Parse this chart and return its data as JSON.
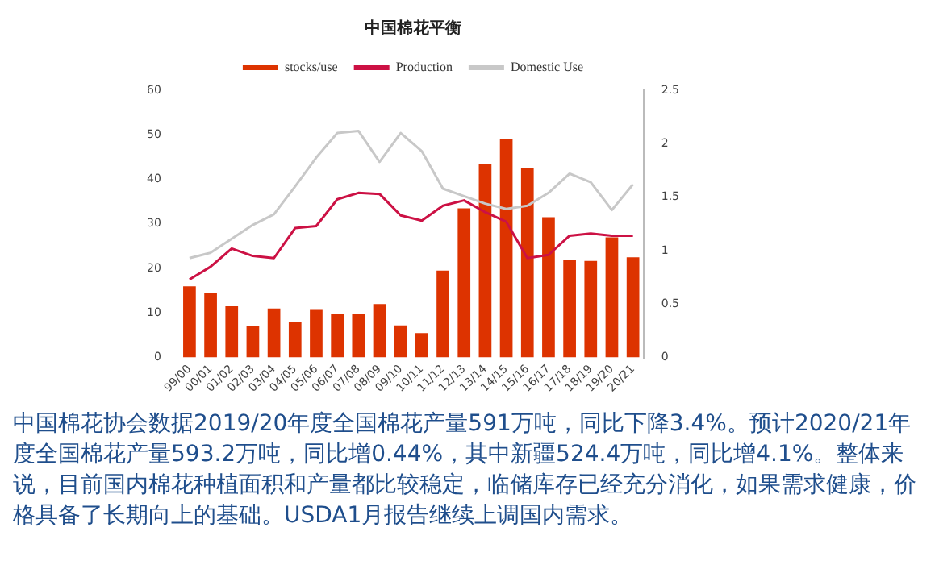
{
  "chart_data": {
    "type": "bar",
    "title": "中国棉花平衡",
    "categories": [
      "99/00",
      "00/01",
      "01/02",
      "02/03",
      "03/04",
      "04/05",
      "05/06",
      "06/07",
      "07/08",
      "08/09",
      "09/10",
      "10/11",
      "11/12",
      "12/13",
      "13/14",
      "14/15",
      "15/16",
      "16/17",
      "17/18",
      "18/19",
      "19/20",
      "20/21"
    ],
    "series": [
      {
        "name": "stocks/use",
        "color": "#dd3300",
        "values": [
          16,
          14.5,
          11.5,
          7,
          11,
          8,
          10.7,
          9.7,
          9.7,
          12,
          7.2,
          5.5,
          19.5,
          33.5,
          43.5,
          49,
          42.5,
          31.5,
          22,
          21.7,
          27,
          22.5
        ]
      },
      {
        "name": "Production",
        "type": "line",
        "axis": "y2",
        "color": "#cc1144",
        "values": [
          0.73,
          0.85,
          1.02,
          0.95,
          0.93,
          1.21,
          1.23,
          1.48,
          1.54,
          1.53,
          1.33,
          1.28,
          1.42,
          1.47,
          1.36,
          1.27,
          0.93,
          0.96,
          1.14,
          1.16,
          1.14,
          1.14
        ]
      },
      {
        "name": "Domestic Use",
        "type": "line",
        "axis": "y2",
        "color": "#c8c8c8",
        "values": [
          0.93,
          0.98,
          1.11,
          1.24,
          1.34,
          1.6,
          1.87,
          2.1,
          2.12,
          1.83,
          2.1,
          1.93,
          1.58,
          1.51,
          1.44,
          1.39,
          1.42,
          1.54,
          1.72,
          1.64,
          1.38,
          1.62
        ]
      }
    ],
    "ylim": [
      0,
      60
    ],
    "yticks": [
      0,
      10,
      20,
      30,
      40,
      50,
      60
    ],
    "y2lim": [
      0,
      2.5
    ],
    "y2ticks": [
      0,
      0.5,
      1,
      1.5,
      2,
      2.5
    ],
    "grid": false,
    "legend": "top",
    "marker": "none",
    "annotations": [
      "中国棉花协会数据2019/20年度全国棉花产量591万吨，同比下降3.4%。预计2020/21年度全国棉花产量593.2万吨，同比增0.44%，其中新疆524.4万吨，同比增4.1%。整体来说，目前国内棉花种植面积和产量都比较稳定，临储库存已经充分消化，如果需求健康，价格具备了长期向上的基础。USDA1月报告继续上调国内需求。"
    ]
  }
}
